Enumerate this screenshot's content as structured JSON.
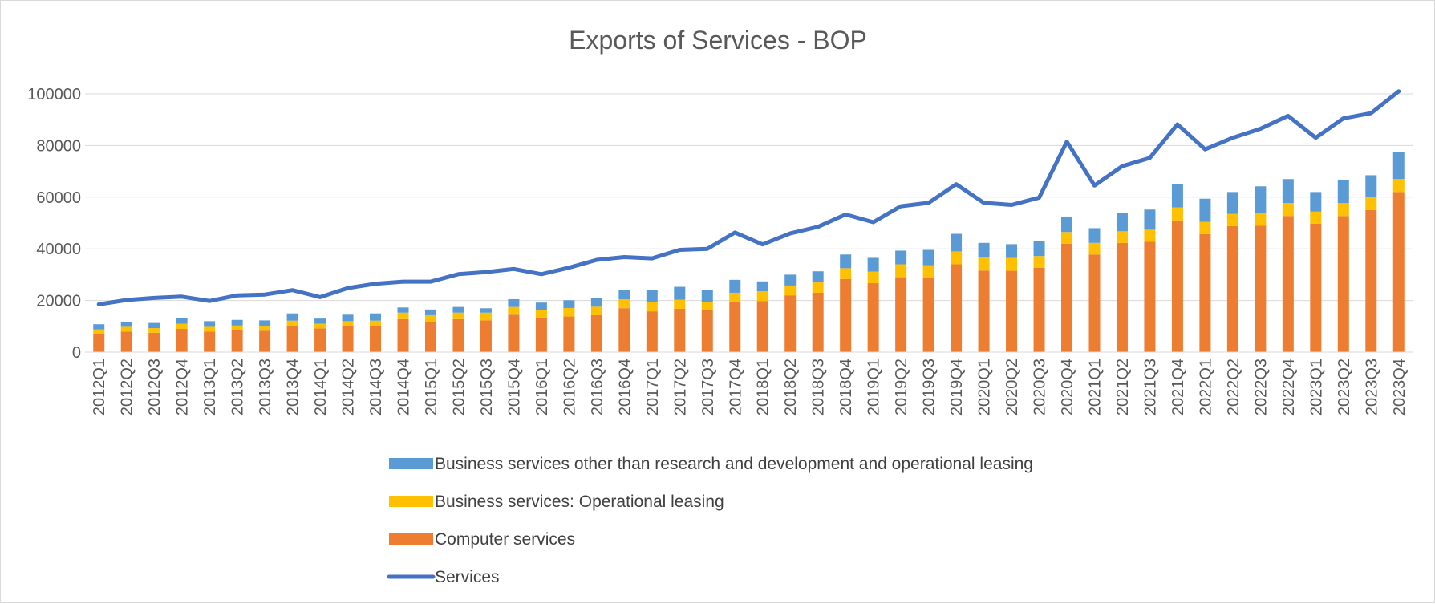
{
  "chart_data": {
    "type": "bar",
    "title": "Exports of Services - BOP",
    "xlabel": "",
    "ylabel": "",
    "ylim": [
      0,
      100000
    ],
    "yticks": [
      0,
      20000,
      40000,
      60000,
      80000,
      100000
    ],
    "grid": true,
    "legend_position": "bottom",
    "categories": [
      "2012Q1",
      "2012Q2",
      "2012Q3",
      "2012Q4",
      "2013Q1",
      "2013Q2",
      "2013Q3",
      "2013Q4",
      "2014Q1",
      "2014Q2",
      "2014Q3",
      "2014Q4",
      "2015Q1",
      "2015Q2",
      "2015Q3",
      "2015Q4",
      "2016Q1",
      "2016Q2",
      "2016Q3",
      "2016Q4",
      "2017Q1",
      "2017Q2",
      "2017Q3",
      "2017Q4",
      "2018Q1",
      "2018Q2",
      "2018Q3",
      "2018Q4",
      "2019Q1",
      "2019Q2",
      "2019Q3",
      "2019Q4",
      "2020Q1",
      "2020Q2",
      "2020Q3",
      "2020Q4",
      "2021Q1",
      "2021Q2",
      "2021Q3",
      "2021Q4",
      "2022Q1",
      "2022Q2",
      "2022Q3",
      "2022Q4",
      "2023Q1",
      "2023Q2",
      "2023Q3",
      "2023Q4"
    ],
    "series": [
      {
        "name": "Computer services",
        "kind": "bar",
        "color": "#ED7D31",
        "values": [
          7000,
          8000,
          7500,
          9000,
          8000,
          8500,
          8300,
          10200,
          9200,
          10000,
          10000,
          12800,
          11800,
          12800,
          12300,
          14500,
          13200,
          13800,
          14300,
          17000,
          15800,
          16800,
          16200,
          19500,
          19800,
          22000,
          23000,
          28300,
          26700,
          29000,
          28600,
          34000,
          31600,
          31500,
          32700,
          42000,
          37800,
          42300,
          42700,
          51000,
          45700,
          48800,
          49000,
          52700,
          49700,
          52700,
          55000,
          62000
        ]
      },
      {
        "name": "Business services: Operational leasing",
        "kind": "bar",
        "color": "#FFC000",
        "values": [
          1800,
          1800,
          1800,
          2000,
          1800,
          1800,
          1800,
          2000,
          1800,
          2000,
          2200,
          2500,
          2500,
          2500,
          3000,
          3000,
          3200,
          3300,
          3300,
          3500,
          3500,
          3500,
          3300,
          3500,
          3800,
          3800,
          4000,
          4200,
          4500,
          5000,
          5000,
          5000,
          5000,
          5000,
          4500,
          4500,
          4500,
          4500,
          4700,
          5000,
          4700,
          4700,
          4700,
          5000,
          4700,
          5000,
          5000,
          5000
        ]
      },
      {
        "name": "Business services other than research and development and operational leasing",
        "kind": "bar",
        "color": "#5B9BD5",
        "values": [
          2000,
          2000,
          2000,
          2200,
          2200,
          2200,
          2200,
          2800,
          2000,
          2500,
          2800,
          2000,
          2200,
          2200,
          1700,
          3000,
          2800,
          3000,
          3500,
          3700,
          4700,
          5000,
          4500,
          5000,
          3800,
          4200,
          4300,
          5300,
          5300,
          5300,
          6000,
          6800,
          5700,
          5300,
          5700,
          6000,
          5700,
          7200,
          7800,
          9000,
          9000,
          8500,
          10500,
          9300,
          7600,
          9000,
          8500,
          10500
        ]
      },
      {
        "name": "Services",
        "kind": "line",
        "color": "#4472C4",
        "values": [
          18500,
          20200,
          21000,
          21500,
          19800,
          22000,
          22300,
          24000,
          21300,
          24800,
          26500,
          27300,
          27300,
          30200,
          31000,
          32200,
          30200,
          32700,
          35700,
          36800,
          36300,
          39600,
          40000,
          46300,
          41700,
          46000,
          48500,
          53300,
          50300,
          56500,
          57800,
          65000,
          57800,
          57000,
          59800,
          81500,
          64500,
          72000,
          75200,
          88200,
          78500,
          83000,
          86500,
          91500,
          83000,
          90500,
          92500,
          101000
        ]
      }
    ],
    "legend": [
      "Business services other than research and development and operational leasing",
      "Business services: Operational leasing",
      "Computer services",
      "Services"
    ]
  }
}
